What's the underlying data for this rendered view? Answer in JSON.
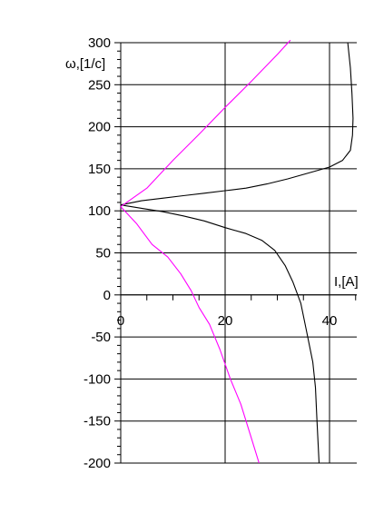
{
  "chart_data": {
    "type": "line",
    "xlabel": "I,[A]",
    "ylabel": "ω,[1/c]",
    "xlim": [
      0,
      45
    ],
    "ylim": [
      -200,
      300
    ],
    "x_ticks": [
      0,
      20,
      40
    ],
    "y_ticks": [
      300,
      250,
      200,
      150,
      100,
      50,
      0,
      -50,
      -100,
      -150,
      -200
    ],
    "x_tick_labels": [
      "0",
      "20",
      "40"
    ],
    "y_tick_labels": [
      "300",
      "250",
      "200",
      "150",
      "100",
      "50",
      "0",
      "-50",
      "-100",
      "-150",
      "-200"
    ],
    "grid": true,
    "series": [
      {
        "color": "#000000",
        "points": [
          [
            43.5,
            300
          ],
          [
            44,
            270
          ],
          [
            44.3,
            240
          ],
          [
            44.5,
            210
          ],
          [
            44.4,
            190
          ],
          [
            44,
            172
          ],
          [
            42.5,
            160
          ],
          [
            40,
            152
          ],
          [
            36,
            145
          ],
          [
            32,
            138
          ],
          [
            28,
            132
          ],
          [
            24,
            127
          ],
          [
            20,
            124
          ],
          [
            16,
            121
          ],
          [
            12,
            118
          ],
          [
            8,
            115
          ],
          [
            4,
            112
          ],
          [
            0,
            107
          ]
        ]
      },
      {
        "color": "#000000",
        "points": [
          [
            0,
            107
          ],
          [
            4,
            103
          ],
          [
            8,
            99
          ],
          [
            12,
            94
          ],
          [
            16,
            88
          ],
          [
            20,
            80
          ],
          [
            24,
            73
          ],
          [
            27,
            65
          ],
          [
            29.5,
            53
          ],
          [
            31.5,
            35
          ],
          [
            33,
            15
          ],
          [
            34.5,
            -10
          ],
          [
            35.5,
            -40
          ],
          [
            36.8,
            -80
          ],
          [
            37.3,
            -110
          ],
          [
            37.6,
            -150
          ],
          [
            38,
            -200
          ]
        ]
      },
      {
        "color": "#ff00ff",
        "points": [
          [
            0,
            105
          ],
          [
            5,
            127
          ],
          [
            10,
            160
          ],
          [
            15,
            191
          ],
          [
            20,
            223
          ],
          [
            25,
            254
          ],
          [
            30,
            286
          ],
          [
            32.5,
            303
          ]
        ]
      },
      {
        "color": "#ff00ff",
        "points": [
          [
            0,
            105
          ],
          [
            3,
            85
          ],
          [
            6,
            60
          ],
          [
            9,
            45
          ],
          [
            11.5,
            25
          ],
          [
            13.5,
            5
          ],
          [
            15,
            -15
          ],
          [
            17,
            -35
          ],
          [
            19,
            -65
          ],
          [
            21,
            -100
          ],
          [
            23,
            -130
          ],
          [
            25,
            -170
          ],
          [
            26.5,
            -200
          ]
        ]
      }
    ]
  }
}
